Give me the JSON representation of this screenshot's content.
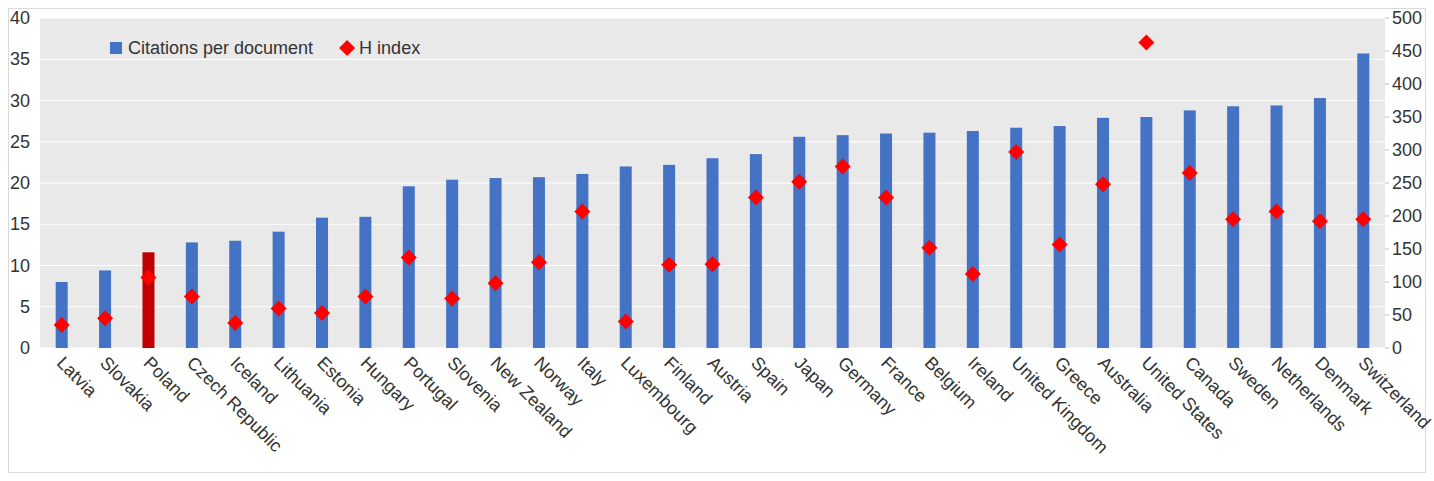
{
  "chart_data": {
    "type": "bar",
    "categories": [
      "Latvia",
      "Slovakia",
      "Poland",
      "Czech Republic",
      "Iceland",
      "Lithuania",
      "Estonia",
      "Hungary",
      "Portugal",
      "Slovenia",
      "New Zealand",
      "Norway",
      "Italy",
      "Luxembourg",
      "Finland",
      "Austria",
      "Spain",
      "Japan",
      "Germany",
      "France",
      "Belgium",
      "Ireland",
      "United Kingdom",
      "Greece",
      "Australia",
      "United States",
      "Canada",
      "Sweden",
      "Netherlands",
      "Denmark",
      "Switzerland"
    ],
    "series": [
      {
        "name": "Citations per document",
        "type": "bar",
        "color": "#4472c4",
        "colors": [
          "#4472c4",
          "#4472c4",
          "#c00000",
          "#4472c4",
          "#4472c4",
          "#4472c4",
          "#4472c4",
          "#4472c4",
          "#4472c4",
          "#4472c4",
          "#4472c4",
          "#4472c4",
          "#4472c4",
          "#4472c4",
          "#4472c4",
          "#4472c4",
          "#4472c4",
          "#4472c4",
          "#4472c4",
          "#4472c4",
          "#4472c4",
          "#4472c4",
          "#4472c4",
          "#4472c4",
          "#4472c4",
          "#4472c4",
          "#4472c4",
          "#4472c4",
          "#4472c4",
          "#4472c4",
          "#4472c4"
        ],
        "values": [
          8,
          9.4,
          11.6,
          12.8,
          13,
          14.1,
          15.8,
          15.9,
          19.6,
          20.4,
          20.6,
          20.7,
          21.1,
          22,
          22.2,
          23,
          23.5,
          25.6,
          25.8,
          26,
          26.1,
          26.3,
          26.7,
          26.9,
          27.9,
          28,
          28.8,
          29.3,
          29.4,
          30.3,
          35.7
        ]
      },
      {
        "name": "H index",
        "type": "scatter",
        "marker": "diamond",
        "color": "#ff0000",
        "axis": "y2",
        "values": [
          35,
          45,
          107,
          78,
          38,
          60,
          53,
          78,
          137,
          75,
          98,
          130,
          207,
          40,
          126,
          127,
          228,
          252,
          275,
          228,
          152,
          112,
          297,
          157,
          248,
          463,
          265,
          195,
          207,
          192,
          195
        ]
      }
    ],
    "ylim": [
      0,
      40
    ],
    "yticks": [
      0,
      5,
      10,
      15,
      20,
      25,
      30,
      35,
      40
    ],
    "y2lim": [
      0,
      500
    ],
    "y2ticks": [
      0,
      50,
      100,
      150,
      200,
      250,
      300,
      350,
      400,
      450,
      500
    ],
    "grid": true,
    "legend": "upper left"
  }
}
